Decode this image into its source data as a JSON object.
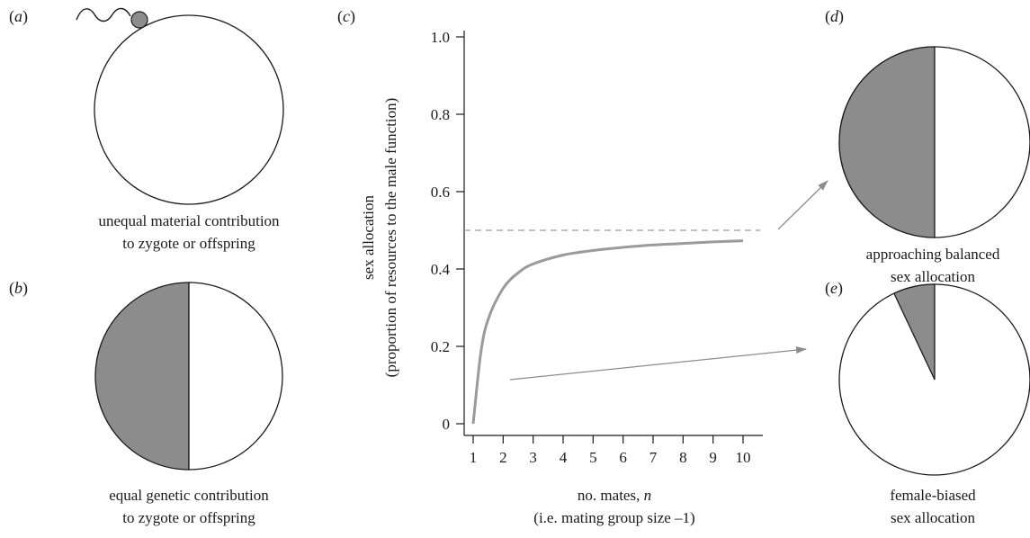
{
  "colors": {
    "ink": "#1a1a1a",
    "grey_fill": "#8c8c8c",
    "curve": "#9a9a9a",
    "arrow": "#8c8c8c",
    "dashed": "#9a9a9a"
  },
  "panels": {
    "a": {
      "letter": "a",
      "caption_line1": "unequal material contribution",
      "caption_line2": "to zygote or offspring"
    },
    "b": {
      "letter": "b",
      "caption_line1": "equal genetic contribution",
      "caption_line2": "to zygote or offspring"
    },
    "c": {
      "letter": "c"
    },
    "d": {
      "letter": "d",
      "caption_line1": "approaching balanced",
      "caption_line2": "sex allocation",
      "male_fraction": 0.5
    },
    "e": {
      "letter": "e",
      "caption_line1": "female-biased",
      "caption_line2": "sex allocation",
      "male_fraction": 0.07
    }
  },
  "chart_data": {
    "type": "line",
    "ylabel_line1": "sex allocation",
    "ylabel_line2": "(proportion of resources to the male function)",
    "xlabel_line1_pre": "no. mates, ",
    "xlabel_line1_var": "n",
    "xlabel_line2": "(i.e. mating group size –1)",
    "xlim": [
      1,
      10
    ],
    "ylim": [
      0,
      1.0
    ],
    "x_ticks": [
      1,
      2,
      3,
      4,
      5,
      6,
      7,
      8,
      9,
      10
    ],
    "y_ticks": [
      0,
      0.2,
      0.4,
      0.6,
      0.8,
      1.0
    ],
    "x_tick_labels": [
      "1",
      "2",
      "3",
      "4",
      "5",
      "6",
      "7",
      "8",
      "9",
      "10"
    ],
    "y_tick_labels": [
      "0",
      "0.2",
      "0.4",
      "0.6",
      "0.8",
      "1.0"
    ],
    "reference_line": {
      "y": 0.5,
      "style": "dashed"
    },
    "series": [
      {
        "x": [
          1,
          1.25,
          1.5,
          2,
          2.5,
          3,
          4,
          5,
          6,
          7,
          8,
          9,
          10
        ],
        "values": [
          0,
          0.18,
          0.27,
          0.35,
          0.39,
          0.413,
          0.436,
          0.448,
          0.456,
          0.462,
          0.466,
          0.47,
          0.473
        ]
      }
    ]
  }
}
